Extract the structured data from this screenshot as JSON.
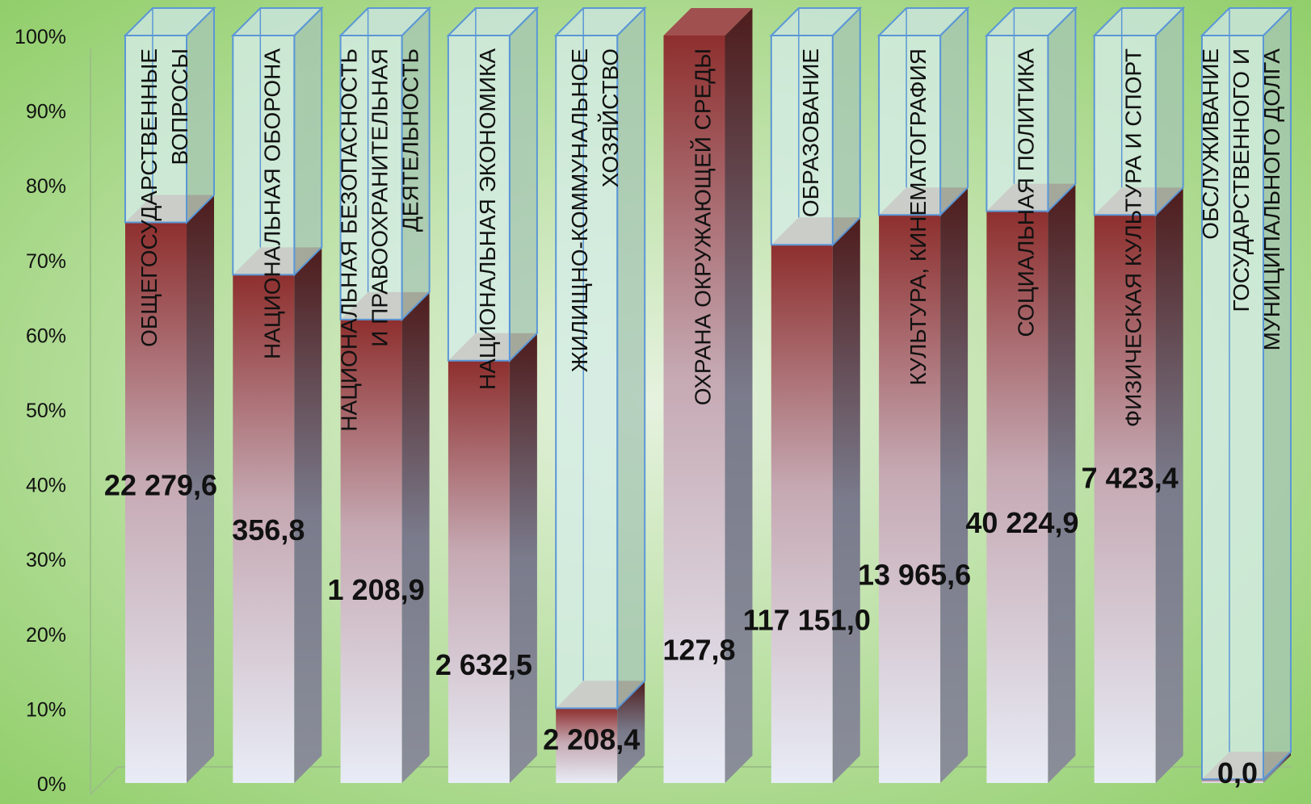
{
  "chart_data": {
    "type": "bar",
    "stacked": true,
    "percent_stacked": true,
    "ylim": [
      0,
      100
    ],
    "yticks": [
      "0%",
      "10%",
      "20%",
      "30%",
      "40%",
      "50%",
      "60%",
      "70%",
      "80%",
      "90%",
      "100%"
    ],
    "grid": false,
    "legend": "none",
    "categories": [
      "ОБЩЕГОСУДАРСТВЕННЫЕ ВОПРОСЫ",
      "НАЦИОНАЛЬНАЯ ОБОРОНА",
      "НАЦИОНАЛЬНАЯ БЕЗОПАСНОСТЬ И ПРАВООХРАНИТЕЛЬНАЯ ДЕЯТЕЛЬНОСТЬ",
      "НАЦИОНАЛЬНАЯ ЭКОНОМИКА",
      "ЖИЛИЩНО-КОММУНАЛЬНОЕ ХОЗЯЙСТВО",
      "ОХРАНА ОКРУЖАЮЩЕЙ СРЕДЫ",
      "ОБРАЗОВАНИЕ",
      "КУЛЬТУРА, КИНЕМАТОГРАФИЯ",
      "СОЦИАЛЬНАЯ ПОЛИТИКА",
      "ФИЗИЧЕСКАЯ КУЛЬТУРА И СПОРТ",
      "ОБСЛУЖИВАНИЕ ГОСУДАРСТВЕННОГО И МУНИЦИПАЛЬНОГО ДОЛГА"
    ],
    "category_lines": [
      [
        "ОБЩЕГОСУДАРСТВЕННЫЕ",
        "ВОПРОСЫ"
      ],
      [
        "НАЦИОНАЛЬНАЯ ОБОРОНА"
      ],
      [
        "НАЦИОНАЛЬНАЯ БЕЗОПАСНОСТЬ",
        "И ПРАВООХРАНИТЕЛЬНАЯ",
        "ДЕЯТЕЛЬНОСТЬ"
      ],
      [
        "НАЦИОНАЛЬНАЯ ЭКОНОМИКА"
      ],
      [
        "ЖИЛИЩНО-КОММУНАЛЬНОЕ",
        "ХОЗЯЙСТВО"
      ],
      [
        "ОХРАНА ОКРУЖАЮЩЕЙ СРЕДЫ"
      ],
      [
        "ОБРАЗОВАНИЕ"
      ],
      [
        "КУЛЬТУРА, КИНЕМАТОГРАФИЯ"
      ],
      [
        "СОЦИАЛЬНАЯ ПОЛИТИКА"
      ],
      [
        "ФИЗИЧЕСКАЯ КУЛЬТУРА И СПОРТ"
      ],
      [
        "ОБСЛУЖИВАНИЕ",
        "ГОСУДАРСТВЕННОГО И",
        "МУНИЦИПАЛЬНОГО ДОЛГА"
      ]
    ],
    "series": [
      {
        "values": [
          75,
          68,
          62,
          56.5,
          10,
          100,
          72,
          76,
          76.5,
          76,
          0.5
        ]
      },
      {
        "values": [
          25,
          32,
          38,
          43.5,
          90,
          0,
          28,
          24,
          23.5,
          24,
          99.5
        ]
      }
    ],
    "data_labels": [
      "22 279,6",
      "356,8",
      "1 208,9",
      "2 632,5",
      "2 208,4",
      "127,8",
      "117 151,0",
      "13 965,6",
      "40 224,9",
      "7 423,4",
      "0,0"
    ],
    "colors": {
      "executed_top": "#8e2f2e",
      "executed_mid": "#c5a8b2",
      "executed_bottom": "#e8ecf6",
      "remainder_fill": "#d5ece6",
      "remainder_stroke": "#5b97d6",
      "background_center": "#e6f2df",
      "background_edge": "#8ccc63"
    }
  }
}
